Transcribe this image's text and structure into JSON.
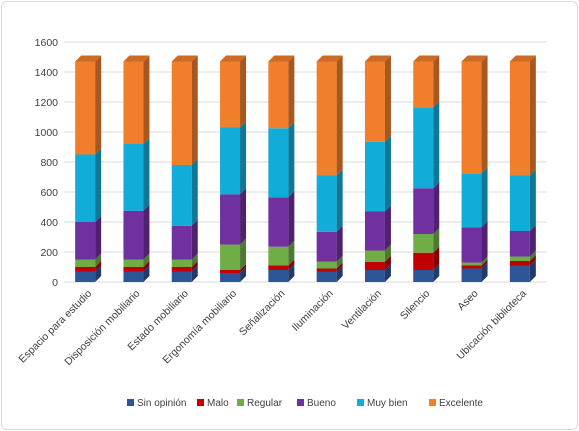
{
  "chart_data": {
    "type": "bar",
    "stacked": true,
    "three_d": true,
    "categories": [
      "Espacio para estudio",
      "Disposición mobiliario",
      "Estado mobiliario",
      "Ergonomía mobiliario",
      "Señalización",
      "Iluminación",
      "Ventilación",
      "Silencio",
      "Aseo",
      "Ubicación biblioteca"
    ],
    "series": [
      {
        "name": "Sin opinión",
        "color": "#2e5597",
        "values": [
          70,
          70,
          70,
          60,
          80,
          70,
          80,
          80,
          90,
          110
        ]
      },
      {
        "name": "Malo",
        "color": "#c00000",
        "values": [
          30,
          30,
          30,
          20,
          30,
          20,
          55,
          115,
          20,
          30
        ]
      },
      {
        "name": "Regular",
        "color": "#70ad47",
        "values": [
          50,
          50,
          50,
          170,
          125,
          45,
          75,
          125,
          20,
          30
        ]
      },
      {
        "name": "Bueno",
        "color": "#7030a0",
        "values": [
          250,
          325,
          225,
          335,
          330,
          200,
          260,
          305,
          235,
          170
        ]
      },
      {
        "name": "Muy bien",
        "color": "#12acd8",
        "values": [
          450,
          445,
          405,
          445,
          460,
          375,
          465,
          540,
          360,
          370
        ]
      },
      {
        "name": "Excelente",
        "color": "#f07e2b",
        "values": [
          620,
          550,
          690,
          440,
          445,
          760,
          535,
          305,
          745,
          760
        ]
      }
    ],
    "ylim": [
      0,
      1600
    ],
    "yticks": [
      "0",
      "200",
      "400",
      "600",
      "800",
      "1000",
      "1200",
      "1400",
      "1600"
    ],
    "grid": true,
    "legend_position": "bottom"
  }
}
